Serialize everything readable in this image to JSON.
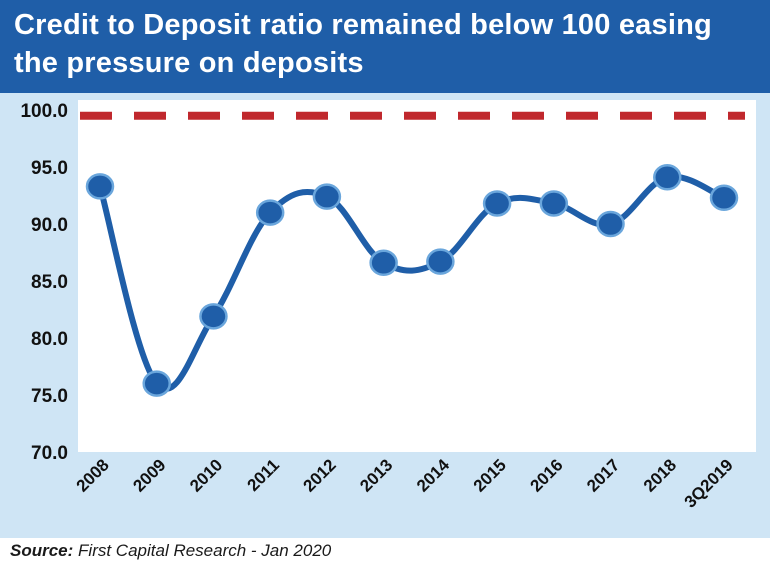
{
  "header": {
    "title_line1": "Credit to Deposit ratio remained below 100 easing",
    "title_line2": "the pressure on deposits"
  },
  "source": {
    "label": "Source:",
    "text": "First Capital Research - Jan 2020"
  },
  "colors": {
    "header_bg": "#1f5ea8",
    "frame_bg": "#cfe5f5",
    "line": "#1f5ea8",
    "marker_fill": "#1f5ea8",
    "marker_stroke": "#6aa6dc",
    "threshold": "#c0282d"
  },
  "chart_data": {
    "type": "line",
    "title": "Credit to Deposit ratio remained below 100 easing the pressure on deposits",
    "categories": [
      "2008",
      "2009",
      "2010",
      "2011",
      "2012",
      "2013",
      "2014",
      "2015",
      "2016",
      "2017",
      "2018",
      "3Q2019"
    ],
    "series": [
      {
        "values": [
          93.3,
          76.0,
          81.9,
          91.0,
          92.4,
          86.6,
          86.7,
          91.8,
          91.8,
          90.0,
          94.1,
          92.3
        ]
      }
    ],
    "threshold": 99.5,
    "yticks": [
      "100.0",
      "95.0",
      "90.0",
      "85.0",
      "80.0",
      "75.0",
      "70.0"
    ],
    "ylim": [
      70,
      100
    ],
    "xlabel": "",
    "ylabel": "",
    "grid": false,
    "legend": "none"
  }
}
